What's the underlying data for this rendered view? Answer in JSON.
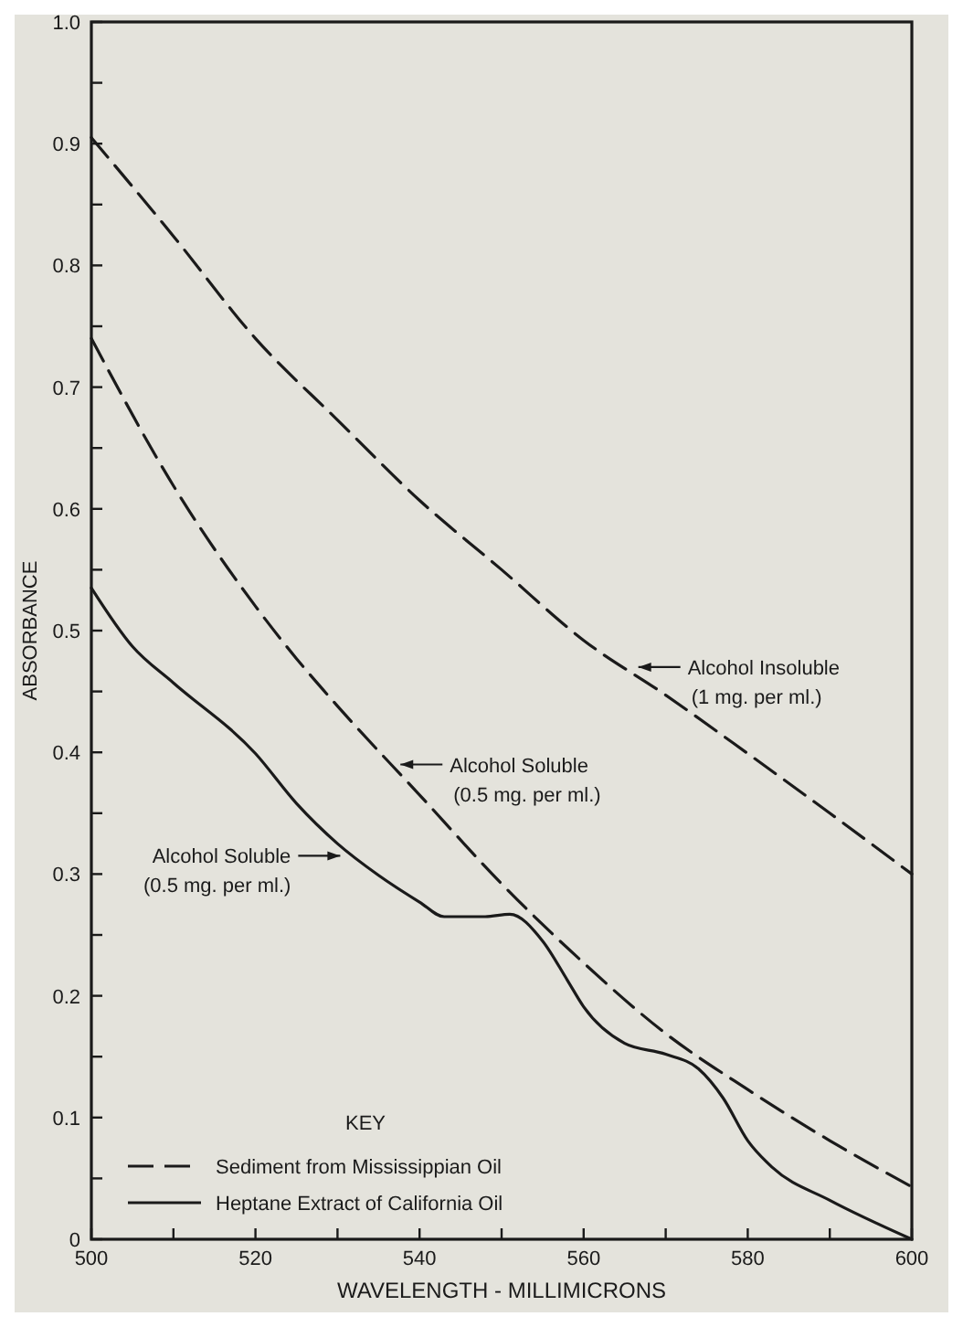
{
  "chart_data": {
    "type": "line",
    "xlabel": "WAVELENGTH - MILLIMICRONS",
    "ylabel": "ABSORBANCE",
    "legend_title": "KEY",
    "legend": "bottom left",
    "grid": false,
    "xlim": [
      500,
      600
    ],
    "ylim": [
      0,
      1.0
    ],
    "xticks": [
      500,
      {
        "value": 510,
        "label": null
      },
      520,
      {
        "value": 530,
        "label": null
      },
      540,
      {
        "value": 550,
        "label": null
      },
      560,
      {
        "value": 570,
        "label": null
      },
      580,
      {
        "value": 590,
        "label": null
      },
      600
    ],
    "yticks": [
      0,
      {
        "value": 0.05,
        "label": null
      },
      0.1,
      {
        "value": 0.15,
        "label": null
      },
      0.2,
      {
        "value": 0.25,
        "label": null
      },
      0.3,
      {
        "value": 0.35,
        "label": null
      },
      0.4,
      {
        "value": 0.45,
        "label": null
      },
      0.5,
      {
        "value": 0.55,
        "label": null
      },
      0.6,
      {
        "value": 0.65,
        "label": null
      },
      0.7,
      {
        "value": 0.75,
        "label": null
      },
      0.8,
      {
        "value": 0.85,
        "label": null
      },
      0.9,
      {
        "value": 0.95,
        "label": null
      },
      {
        "value": 1.0,
        "label": "1.0"
      }
    ],
    "series": [
      {
        "name": "Sediment from Mississippian Oil",
        "color": "#1a1a1a",
        "line_style": "dashed",
        "x": [
          500,
          510,
          520,
          530,
          540,
          550,
          560,
          570,
          580,
          590,
          600
        ],
        "values": [
          0.905,
          0.824,
          0.74,
          0.673,
          0.607,
          0.55,
          0.492,
          0.447,
          0.399,
          0.35,
          0.3
        ]
      },
      {
        "color": "#1a1a1a",
        "line_style": "dashed",
        "x": [
          500,
          510,
          520,
          525,
          530,
          540,
          550,
          560,
          570,
          580,
          590,
          600
        ],
        "values": [
          0.74,
          0.619,
          0.52,
          0.477,
          0.438,
          0.365,
          0.292,
          0.227,
          0.169,
          0.123,
          0.081,
          0.043
        ]
      },
      {
        "name": "Heptane Extract of California Oil",
        "color": "#1a1a1a",
        "line_style": "solid",
        "x": [
          500,
          505,
          510,
          520,
          525,
          530,
          535,
          540,
          543,
          548,
          551,
          555,
          558,
          560,
          565,
          570,
          574,
          577,
          580,
          583,
          590,
          600
        ],
        "values": [
          0.535,
          0.487,
          0.457,
          0.399,
          0.358,
          0.325,
          0.299,
          0.277,
          0.265,
          0.265,
          0.267,
          0.245,
          0.213,
          0.191,
          0.161,
          0.152,
          0.14,
          0.116,
          0.081,
          0.059,
          0.032,
          0
        ]
      }
    ],
    "annotations": [
      {
        "text": "Alcohol Insoluble\n(1 mg. per ml.)",
        "x": 566,
        "y": 0.47
      },
      {
        "text": "Alcohol Soluble\n(0.5 mg. per ml.)",
        "x": 537,
        "y": 0.39
      },
      {
        "text": "Alcohol Soluble\n(0.5 mg. per ml.)",
        "x": 531,
        "y": 0.315
      }
    ]
  }
}
